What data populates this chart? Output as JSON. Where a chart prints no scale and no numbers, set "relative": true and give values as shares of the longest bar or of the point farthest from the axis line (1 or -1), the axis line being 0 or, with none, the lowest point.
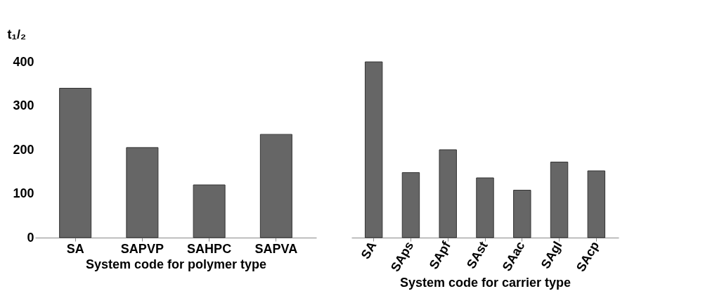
{
  "chart_data": [
    {
      "type": "bar",
      "ylabel": "t₁/₂",
      "xlabel": "System code for polymer type",
      "categories": [
        "SA",
        "SAPVP",
        "SAHPC",
        "SAPVA"
      ],
      "values": [
        340,
        205,
        120,
        235
      ],
      "color": "#666666",
      "ylim": [
        0,
        400
      ],
      "yticks": [
        0,
        100,
        200,
        300,
        400
      ],
      "grid": false
    },
    {
      "type": "bar",
      "xlabel": "System code for carrier type",
      "categories": [
        "SA",
        "SAps",
        "SApf",
        "SAst",
        "SAac",
        "SAgl",
        "SAcp"
      ],
      "values": [
        1,
        0.37,
        0.5,
        0.34,
        0.27,
        0.43,
        0.38
      ],
      "relative": true,
      "color": "#666666",
      "grid": false
    }
  ]
}
